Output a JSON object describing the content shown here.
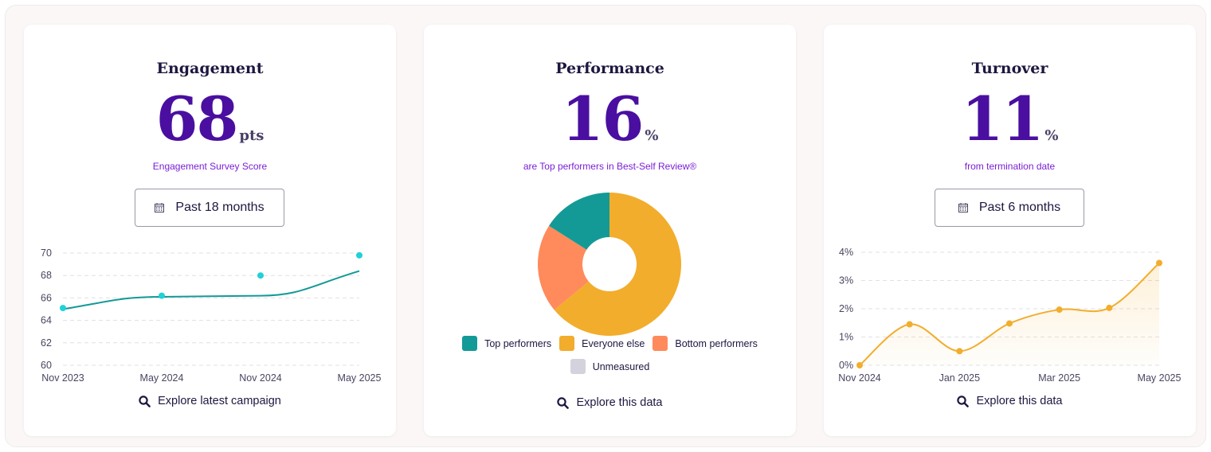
{
  "colors": {
    "accent_purple": "#4a0fa0",
    "teal_line": "#139a96",
    "teal_dot": "#1fd1d8",
    "orange_line": "#f2ad2c",
    "grid": "#e2dfe6"
  },
  "engagement": {
    "title": "Engagement",
    "value": "68",
    "unit": "pts",
    "subtitle": "Engagement Survey Score",
    "range_label": "Past 18 months",
    "explore_label": "Explore latest campaign"
  },
  "performance": {
    "title": "Performance",
    "value": "16",
    "unit": "%",
    "subtitle": "are Top performers in Best-Self Review®",
    "explore_label": "Explore this data"
  },
  "turnover": {
    "title": "Turnover",
    "value": "11",
    "unit": "%",
    "subtitle": "from termination date",
    "range_label": "Past 6 months",
    "explore_label": "Explore this data"
  },
  "chart_data": [
    {
      "id": "engagement",
      "type": "line",
      "ylim": [
        60,
        70
      ],
      "yticks": [
        "60",
        "62",
        "64",
        "66",
        "68",
        "70"
      ],
      "xlabels": [
        "Nov 2023",
        "May 2024",
        "Nov 2024",
        "May 2025"
      ],
      "series": [
        {
          "name": "trend",
          "x": [
            0,
            1,
            2,
            3
          ],
          "values": [
            65.0,
            66.1,
            66.2,
            68.4
          ]
        },
        {
          "name": "scores",
          "x": [
            0,
            1,
            2,
            3
          ],
          "values": [
            65.1,
            66.2,
            68.0,
            69.8
          ]
        }
      ]
    },
    {
      "id": "performance",
      "type": "pie",
      "slices": [
        {
          "label": "Everyone else",
          "value": 64,
          "color": "#f2ad2c"
        },
        {
          "label": "Bottom performers",
          "value": 20,
          "color": "#ff8a5c"
        },
        {
          "label": "Top performers",
          "value": 16,
          "color": "#139a96"
        }
      ],
      "legend": [
        {
          "label": "Top performers",
          "color": "#139a96"
        },
        {
          "label": "Everyone else",
          "color": "#f2ad2c"
        },
        {
          "label": "Bottom performers",
          "color": "#ff8a5c"
        },
        {
          "label": "Unmeasured",
          "color": "#d3d2dd"
        }
      ]
    },
    {
      "id": "turnover",
      "type": "area",
      "ylim": [
        0,
        4
      ],
      "yticks": [
        "0%",
        "1%",
        "2%",
        "3%",
        "4%"
      ],
      "xlabels": [
        "Nov 2024",
        "Jan 2025",
        "Mar 2025",
        "May 2025"
      ],
      "x": [
        0,
        0.5,
        1,
        1.5,
        2,
        2.5,
        3
      ],
      "values": [
        0.0,
        1.45,
        0.5,
        1.48,
        1.97,
        2.03,
        3.62
      ]
    }
  ]
}
